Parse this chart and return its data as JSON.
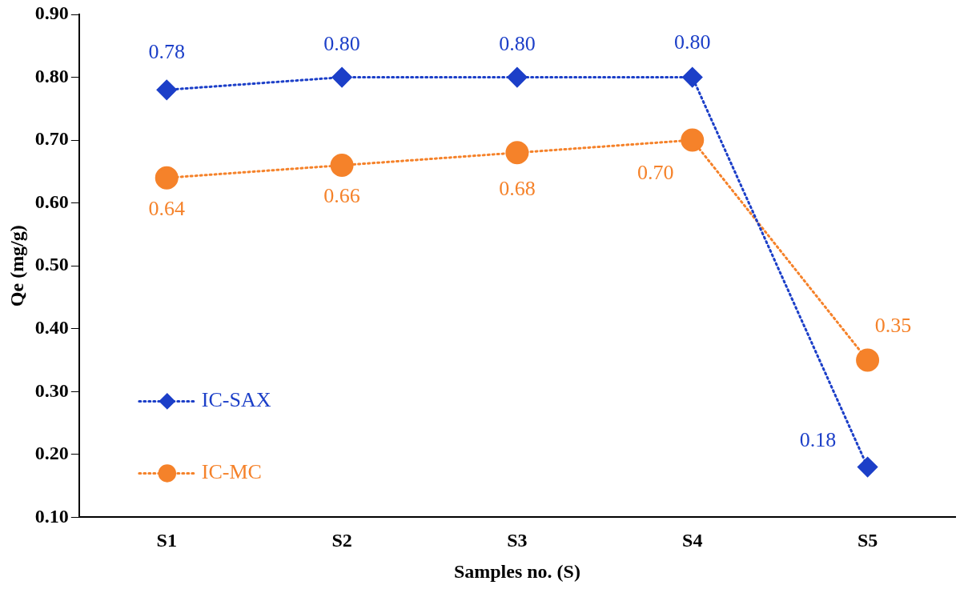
{
  "chart_data": {
    "type": "line",
    "xlabel": "Samples no. (S)",
    "ylabel": "Qe (mg/g)",
    "categories": [
      "S1",
      "S2",
      "S3",
      "S4",
      "S5"
    ],
    "series": [
      {
        "name": "IC-SAX",
        "color": "#1c3fc8",
        "values": [
          0.78,
          0.8,
          0.8,
          0.8,
          0.18
        ],
        "marker": "diamond",
        "value_labels": [
          "0.78",
          "0.80",
          "0.80",
          "0.80",
          "0.18"
        ]
      },
      {
        "name": "IC-MC",
        "color": "#f5822a",
        "values": [
          0.64,
          0.66,
          0.68,
          0.7,
          0.35
        ],
        "marker": "circle",
        "value_labels": [
          "0.64",
          "0.66",
          "0.68",
          "0.70",
          "0.35"
        ]
      }
    ],
    "ylim": [
      0.1,
      0.9
    ],
    "yticks": [
      {
        "value": 0.1,
        "label": "0.10"
      },
      {
        "value": 0.2,
        "label": "0.20"
      },
      {
        "value": 0.3,
        "label": "0.30"
      },
      {
        "value": 0.4,
        "label": "0.40"
      },
      {
        "value": 0.5,
        "label": "0.50"
      },
      {
        "value": 0.6,
        "label": "0.60"
      },
      {
        "value": 0.7,
        "label": "0.70"
      },
      {
        "value": 0.8,
        "label": "0.80"
      },
      {
        "value": 0.9,
        "label": "0.90"
      }
    ],
    "grid": false,
    "legend": "bottom left",
    "line_style": "dotted"
  }
}
